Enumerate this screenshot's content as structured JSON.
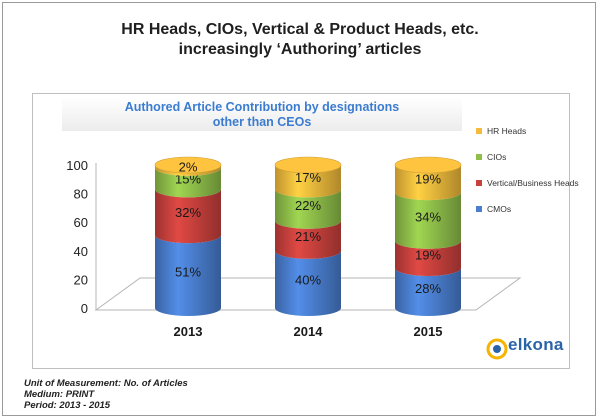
{
  "header": {
    "title_line1": "HR Heads, CIOs, Vertical & Product Heads, etc.",
    "title_line2": "increasingly ‘Authoring’ articles"
  },
  "chart_data": {
    "type": "bar",
    "stacked": true,
    "title_line1": "Authored Article Contribution by designations",
    "title_line2": "other than CEOs",
    "categories": [
      "2013",
      "2014",
      "2015"
    ],
    "series": [
      {
        "name": "CMOs",
        "values": [
          51,
          40,
          28
        ],
        "labels": [
          "51%",
          "40%",
          "28%"
        ],
        "color": "#4a7fd0"
      },
      {
        "name": "Vertical/Business Heads",
        "values": [
          32,
          21,
          19
        ],
        "labels": [
          "32%",
          "21%",
          "19%"
        ],
        "color": "#c9413d"
      },
      {
        "name": "CIOs",
        "values": [
          15,
          22,
          34
        ],
        "labels": [
          "15%",
          "22%",
          "34%"
        ],
        "color": "#8fbf49"
      },
      {
        "name": "HR Heads",
        "values": [
          2,
          17,
          19
        ],
        "labels": [
          "2%",
          "17%",
          "19%"
        ],
        "color": "#f5bb3c"
      }
    ],
    "legend_order": [
      "HR Heads",
      "CIOs",
      "Vertical/Business Heads",
      "CMOs"
    ],
    "yticks": [
      "0",
      "20",
      "40",
      "60",
      "80",
      "100"
    ],
    "ylim": [
      0,
      100
    ],
    "legend_position": "right",
    "grid": false
  },
  "footer": {
    "line1": "Unit of Measurement: No. of Articles",
    "line2": "Medium: PRINT",
    "line3": "Period: 2013 - 2015"
  },
  "logo": {
    "text": "elkona",
    "colors": [
      "#2a64a8",
      "#f4b400"
    ]
  }
}
